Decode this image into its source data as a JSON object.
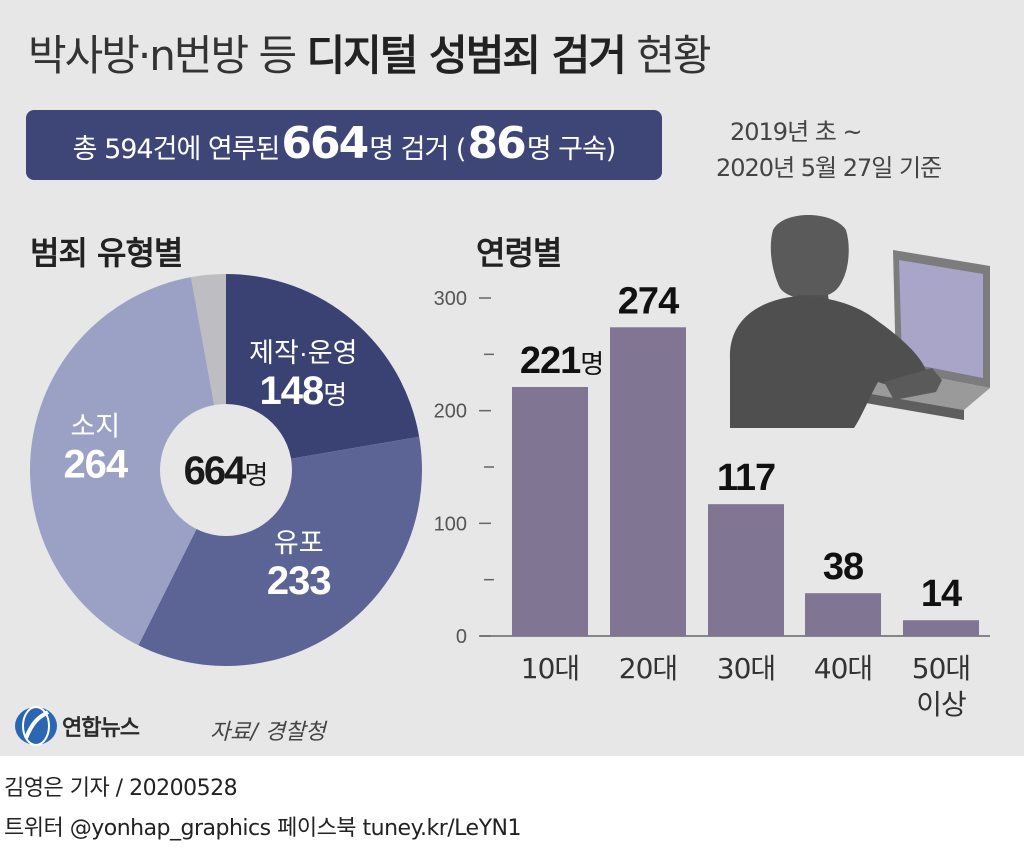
{
  "title": {
    "regular_1": "박사방·n번방 등 ",
    "bold": "디지털 성범죄 검거",
    "regular_2": " 현황"
  },
  "banner": {
    "prefix": "총 594건에 연루된 ",
    "total": "664",
    "mid": "명 검거 (",
    "arrested": "86",
    "suffix": "명 구속)"
  },
  "period": {
    "line1": "2019년 초 ~",
    "line2": "2020년 5월 27일 기준"
  },
  "source": "자료/ 경찰청",
  "logo_text": "연합뉴스",
  "footer": {
    "reporter": "김영은 기자 / 20200528",
    "sns": "트위터 @yonhap_graphics  페이스북 tuney.kr/LeYN1"
  },
  "colors": {
    "banner": "#3e4677",
    "slice_production": "#3a4273",
    "slice_possession": "#5c6496",
    "slice_viewing": "#9ba0c5",
    "slice_other": "#bdbdc2",
    "bar": "#807694",
    "background": "#e7e7e7"
  },
  "chart_data": [
    {
      "type": "pie",
      "title": "범죄 유형별",
      "center_label": {
        "value": "664",
        "unit": "명"
      },
      "slices": [
        {
          "name": "제작·운영",
          "value": 148,
          "unit": "명"
        },
        {
          "name": "유포",
          "value": 233,
          "unit": ""
        },
        {
          "name": "소지",
          "value": 264,
          "unit": ""
        },
        {
          "name": "",
          "value": 19,
          "unit": ""
        }
      ]
    },
    {
      "type": "bar",
      "title": "연령별",
      "categories": [
        "10대",
        "20대",
        "30대",
        "40대",
        "50대\n이상"
      ],
      "values": [
        221,
        274,
        117,
        38,
        14
      ],
      "value_labels": [
        "221",
        "274",
        "117",
        "38",
        "14"
      ],
      "first_value_unit": "명",
      "ylim": [
        0,
        300
      ],
      "yticks": [
        0,
        100,
        200,
        300
      ]
    }
  ]
}
